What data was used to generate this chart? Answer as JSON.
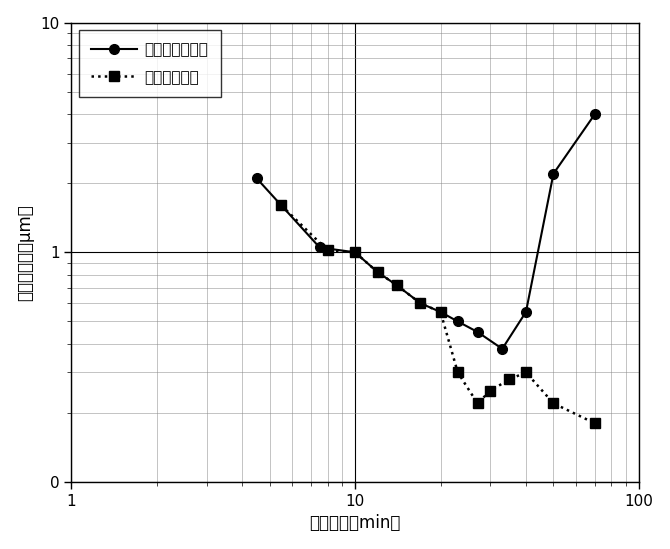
{
  "uretan_x": [
    4.5,
    7.5,
    10,
    12,
    14,
    17,
    20,
    23,
    27,
    33,
    40,
    50,
    70
  ],
  "uretan_y": [
    2.1,
    1.05,
    1.0,
    0.82,
    0.72,
    0.6,
    0.55,
    0.5,
    0.45,
    0.38,
    0.55,
    2.2,
    4.0
  ],
  "sus_x": [
    5.5,
    8,
    10,
    12,
    14,
    17,
    20,
    23,
    27,
    30,
    35,
    40,
    50,
    70
  ],
  "sus_y": [
    1.6,
    1.02,
    1.0,
    0.82,
    0.72,
    0.6,
    0.55,
    0.3,
    0.22,
    0.25,
    0.28,
    0.3,
    0.22,
    0.18
  ],
  "xlabel": "運転時間（min）",
  "ylabel": "平均粒子径（μm）",
  "legend_uretan": "ウレタンロータ",
  "legend_sus": "ＳＵＳロータ",
  "xlim": [
    1,
    100
  ],
  "ylim_min": 0.1,
  "ylim_max": 10,
  "background_color": "#ffffff",
  "line_color": "#000000",
  "xlabel_fontsize": 12,
  "ylabel_fontsize": 12,
  "tick_fontsize": 11,
  "legend_fontsize": 11
}
